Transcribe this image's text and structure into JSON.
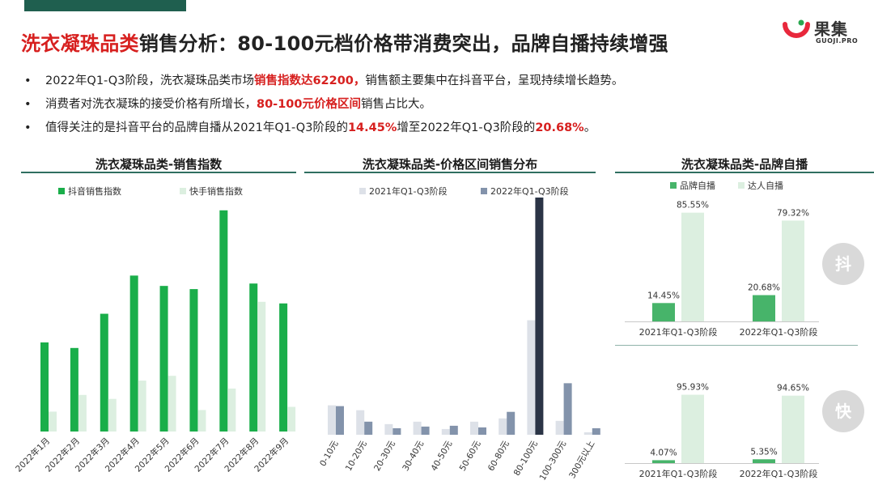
{
  "header": {
    "title_highlight": "洗衣凝珠品类",
    "title_rest": "销售分析：80-100元档价格带消费突出，品牌自播持续增强"
  },
  "logo": {
    "cn": "果集",
    "en": "GUOJI.PRO"
  },
  "bullets": [
    {
      "pre": "2022年Q1-Q3阶段，洗衣凝珠品类市场",
      "hl": "销售指数达62200，",
      "post": "销售额主要集中在抖音平台，呈现持续增长趋势。"
    },
    {
      "pre": "消费者对洗衣凝珠的接受价格有所增长，",
      "hl": "80-100元价格区间",
      "post": "销售占比大。"
    },
    {
      "pre": "值得关注的是抖音平台的品牌自播从2021年Q1-Q3阶段的",
      "hl": "14.45%",
      "mid": "增至2022年Q1-Q3阶段的",
      "hl2": "20.68%",
      "post": "。"
    }
  ],
  "badges": {
    "douyin": "抖",
    "kuaishou": "快"
  },
  "colors": {
    "green_dark": "#1aae4a",
    "green_light": "#dcefe0",
    "gray_light": "#dde1e8",
    "navy": "#2b3446",
    "slate": "#8393ab",
    "red": "#d7201f"
  },
  "chart_data": [
    {
      "type": "bar",
      "title": "洗衣凝珠品类-销售指数",
      "categories": [
        "2022年1月",
        "2022年2月",
        "2022年3月",
        "2022年4月",
        "2022年5月",
        "2022年6月",
        "2022年7月",
        "2022年8月",
        "2022年9月"
      ],
      "series": [
        {
          "name": "抖音销售指数",
          "color": "#1aae4a",
          "values": [
            112,
            105,
            148,
            196,
            183,
            179,
            278,
            186,
            161
          ]
        },
        {
          "name": "快手销售指数",
          "color": "#dcefe0",
          "values": [
            25,
            46,
            41,
            64,
            70,
            27,
            54,
            163,
            31
          ]
        }
      ],
      "ylim": [
        0,
        290
      ],
      "legend": "top"
    },
    {
      "type": "bar",
      "title": "洗衣凝珠品类-价格区间销售分布",
      "categories": [
        "0-10元",
        "10-20元",
        "20-30元",
        "30-40元",
        "40-50元",
        "50-60元",
        "60-80元",
        "80-100元",
        "100-300元",
        "300元以上"
      ],
      "series": [
        {
          "name": "2021年Q1-Q3阶段",
          "color": "#dde1e8",
          "values": [
            36,
            30,
            13,
            16,
            7,
            16,
            20,
            140,
            17,
            3
          ]
        },
        {
          "name": "2022年Q1-Q3阶段",
          "color": "#8393ab",
          "values": [
            35,
            16,
            8,
            10,
            11,
            9,
            28,
            290,
            63,
            8
          ]
        }
      ],
      "highlight": {
        "category": "80-100元",
        "series": "2022年Q1-Q3阶段",
        "color": "#2b3446"
      },
      "ylim": [
        0,
        290
      ],
      "legend": "top"
    },
    {
      "type": "bar",
      "title": "洗衣凝珠品类-品牌自播",
      "platform": "抖",
      "categories": [
        "2021年Q1-Q3阶段",
        "2022年Q1-Q3阶段"
      ],
      "series": [
        {
          "name": "品牌自播",
          "color": "#47b46a",
          "values": [
            14.45,
            20.68
          ],
          "labels": [
            "14.45%",
            "20.68%"
          ]
        },
        {
          "name": "达人自播",
          "color": "#dcefe0",
          "values": [
            85.55,
            79.32
          ],
          "labels": [
            "85.55%",
            "79.32%"
          ]
        }
      ],
      "ylim": [
        0,
        100
      ],
      "legend": "top"
    },
    {
      "type": "bar",
      "platform": "快",
      "categories": [
        "2021年Q1-Q3阶段",
        "2022年Q1-Q3阶段"
      ],
      "series": [
        {
          "name": "品牌自播",
          "color": "#47b46a",
          "values": [
            4.07,
            5.35
          ],
          "labels": [
            "4.07%",
            "5.35%"
          ]
        },
        {
          "name": "达人自播",
          "color": "#dcefe0",
          "values": [
            95.93,
            94.65
          ],
          "labels": [
            "95.93%",
            "94.65%"
          ]
        }
      ],
      "ylim": [
        0,
        100
      ]
    }
  ]
}
